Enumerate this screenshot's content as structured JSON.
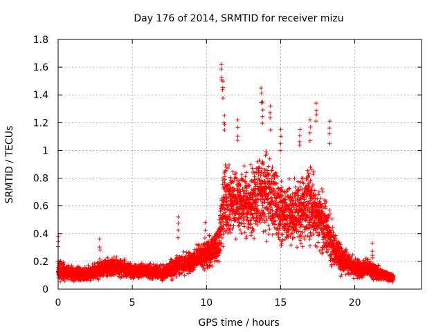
{
  "chart_data": {
    "type": "scatter",
    "title": "Day 176 of 2014, SRMTID for receiver mizu",
    "xlabel": "GPS time / hours",
    "ylabel": "SRMTID / TECUs",
    "xlim": [
      0,
      24.5
    ],
    "ylim": [
      0,
      1.8
    ],
    "xticks": [
      0,
      5,
      10,
      15,
      20
    ],
    "xtick_labels": [
      "0",
      "5",
      "10",
      "15",
      "20"
    ],
    "yticks": [
      0,
      0.2,
      0.4,
      0.6,
      0.8,
      1.0,
      1.2,
      1.4,
      1.6,
      1.8
    ],
    "ytick_labels": [
      "0",
      "0.2",
      "0.4",
      "0.6",
      "0.8",
      "1",
      "1.2",
      "1.4",
      "1.6",
      "1.8"
    ],
    "grid": true,
    "marker": "+",
    "color": "#ff0000",
    "series": [
      {
        "name": "SRMTID",
        "envelope": [
          {
            "x": 0.0,
            "mean": 0.13,
            "spread": 0.1
          },
          {
            "x": 1.0,
            "mean": 0.11,
            "spread": 0.07
          },
          {
            "x": 2.0,
            "mean": 0.11,
            "spread": 0.07
          },
          {
            "x": 3.0,
            "mean": 0.15,
            "spread": 0.09
          },
          {
            "x": 4.0,
            "mean": 0.16,
            "spread": 0.09
          },
          {
            "x": 5.0,
            "mean": 0.13,
            "spread": 0.07
          },
          {
            "x": 6.0,
            "mean": 0.13,
            "spread": 0.07
          },
          {
            "x": 7.0,
            "mean": 0.12,
            "spread": 0.07
          },
          {
            "x": 8.0,
            "mean": 0.16,
            "spread": 0.1
          },
          {
            "x": 9.0,
            "mean": 0.2,
            "spread": 0.1
          },
          {
            "x": 10.0,
            "mean": 0.25,
            "spread": 0.14
          },
          {
            "x": 10.8,
            "mean": 0.32,
            "spread": 0.18
          },
          {
            "x": 11.2,
            "mean": 0.65,
            "spread": 0.4
          },
          {
            "x": 12.0,
            "mean": 0.62,
            "spread": 0.3
          },
          {
            "x": 13.0,
            "mean": 0.62,
            "spread": 0.32
          },
          {
            "x": 14.0,
            "mean": 0.7,
            "spread": 0.38
          },
          {
            "x": 15.0,
            "mean": 0.55,
            "spread": 0.32
          },
          {
            "x": 16.0,
            "mean": 0.55,
            "spread": 0.32
          },
          {
            "x": 17.0,
            "mean": 0.62,
            "spread": 0.36
          },
          {
            "x": 18.0,
            "mean": 0.45,
            "spread": 0.28
          },
          {
            "x": 19.0,
            "mean": 0.22,
            "spread": 0.14
          },
          {
            "x": 20.0,
            "mean": 0.15,
            "spread": 0.09
          },
          {
            "x": 21.0,
            "mean": 0.14,
            "spread": 0.09
          },
          {
            "x": 22.0,
            "mean": 0.1,
            "spread": 0.05
          },
          {
            "x": 22.6,
            "mean": 0.08,
            "spread": 0.04
          }
        ],
        "peaks": [
          {
            "x": 0.0,
            "y": 0.38
          },
          {
            "x": 2.8,
            "y": 0.36
          },
          {
            "x": 8.1,
            "y": 0.52
          },
          {
            "x": 9.9,
            "y": 0.48
          },
          {
            "x": 11.0,
            "y": 1.62
          },
          {
            "x": 11.1,
            "y": 1.5
          },
          {
            "x": 11.2,
            "y": 1.25
          },
          {
            "x": 12.1,
            "y": 1.22
          },
          {
            "x": 13.7,
            "y": 1.45
          },
          {
            "x": 13.8,
            "y": 1.35
          },
          {
            "x": 14.3,
            "y": 1.32
          },
          {
            "x": 15.0,
            "y": 1.15
          },
          {
            "x": 16.3,
            "y": 1.15
          },
          {
            "x": 17.0,
            "y": 1.22
          },
          {
            "x": 17.4,
            "y": 1.34
          },
          {
            "x": 18.3,
            "y": 1.21
          },
          {
            "x": 21.2,
            "y": 0.33
          }
        ]
      }
    ]
  }
}
